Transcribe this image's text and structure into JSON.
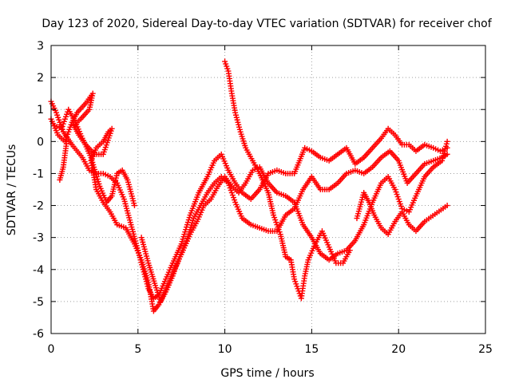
{
  "chart_data": {
    "type": "scatter",
    "title": "Day 123 of 2020, Sidereal Day-to-day VTEC variation (SDTVAR) for receiver chof",
    "xlabel": "GPS time / hours",
    "ylabel": "SDTVAR / TECUs",
    "xlim": [
      0,
      25
    ],
    "ylim": [
      -6,
      3
    ],
    "x_ticks": [
      0,
      5,
      10,
      15,
      20,
      25
    ],
    "y_ticks": [
      -6,
      -5,
      -4,
      -3,
      -2,
      -1,
      0,
      1,
      2,
      3
    ],
    "x_tick_labels": [
      "0",
      "5",
      "10",
      "15",
      "20",
      "25"
    ],
    "y_tick_labels": [
      "-6",
      "-5",
      "-4",
      "-3",
      "-2",
      "-1",
      "0",
      "1",
      "2",
      "3"
    ],
    "grid": true,
    "marker": "plus",
    "marker_color": "#ff0000",
    "series": [
      {
        "points": [
          [
            0.0,
            1.25
          ],
          [
            0.3,
            0.9
          ],
          [
            0.7,
            0.3
          ],
          [
            1.2,
            -0.1
          ],
          [
            1.8,
            -0.5
          ],
          [
            2.2,
            -0.9
          ],
          [
            2.6,
            -1.0
          ],
          [
            3.0,
            -1.0
          ],
          [
            3.4,
            -1.1
          ],
          [
            3.8,
            -1.3
          ],
          [
            4.2,
            -1.8
          ],
          [
            4.6,
            -2.6
          ],
          [
            5.0,
            -3.4
          ],
          [
            5.3,
            -4.0
          ],
          [
            5.6,
            -4.6
          ],
          [
            5.9,
            -4.9
          ],
          [
            6.2,
            -4.8
          ],
          [
            6.6,
            -4.3
          ],
          [
            7.0,
            -3.8
          ],
          [
            7.5,
            -3.2
          ],
          [
            8.0,
            -2.3
          ],
          [
            8.5,
            -1.6
          ],
          [
            9.0,
            -1.1
          ],
          [
            9.4,
            -0.6
          ],
          [
            9.8,
            -0.4
          ],
          [
            10.2,
            -0.9
          ],
          [
            10.6,
            -1.3
          ],
          [
            11.0,
            -1.6
          ],
          [
            11.5,
            -1.8
          ],
          [
            12.0,
            -1.5
          ],
          [
            12.5,
            -1.0
          ],
          [
            13.0,
            -0.9
          ],
          [
            13.5,
            -1.0
          ],
          [
            14.0,
            -1.0
          ],
          [
            14.3,
            -0.6
          ],
          [
            14.6,
            -0.2
          ],
          [
            15.0,
            -0.3
          ],
          [
            15.5,
            -0.5
          ],
          [
            16.0,
            -0.6
          ],
          [
            16.5,
            -0.4
          ],
          [
            17.0,
            -0.2
          ],
          [
            17.5,
            -0.7
          ],
          [
            18.0,
            -0.5
          ],
          [
            18.5,
            -0.2
          ],
          [
            19.0,
            0.1
          ],
          [
            19.4,
            0.4
          ],
          [
            19.8,
            0.2
          ],
          [
            20.2,
            -0.1
          ],
          [
            20.6,
            -0.1
          ],
          [
            21.0,
            -0.3
          ],
          [
            21.5,
            -0.1
          ],
          [
            22.0,
            -0.2
          ],
          [
            22.4,
            -0.3
          ],
          [
            22.8,
            -0.2
          ]
        ]
      },
      {
        "points": [
          [
            0.0,
            0.7
          ],
          [
            0.4,
            0.2
          ],
          [
            0.8,
            0.0
          ],
          [
            1.2,
            0.6
          ],
          [
            1.5,
            0.9
          ],
          [
            2.0,
            1.2
          ],
          [
            2.4,
            1.5
          ],
          [
            2.2,
            1.0
          ],
          [
            1.7,
            0.7
          ],
          [
            1.3,
            0.5
          ],
          [
            1.6,
            0.2
          ],
          [
            2.0,
            -0.1
          ],
          [
            2.5,
            -0.4
          ],
          [
            3.0,
            -0.4
          ],
          [
            3.5,
            0.4
          ],
          [
            3.3,
            0.3
          ],
          [
            3.0,
            0.0
          ],
          [
            2.6,
            -0.2
          ],
          [
            2.3,
            -0.6
          ],
          [
            2.6,
            -1.5
          ],
          [
            3.0,
            -1.9
          ],
          [
            3.4,
            -2.2
          ],
          [
            3.8,
            -2.6
          ],
          [
            4.3,
            -2.7
          ],
          [
            4.8,
            -3.2
          ],
          [
            5.2,
            -3.7
          ],
          [
            5.6,
            -4.4
          ],
          [
            5.9,
            -5.3
          ],
          [
            6.2,
            -5.1
          ],
          [
            6.6,
            -4.7
          ],
          [
            7.0,
            -4.2
          ],
          [
            7.4,
            -3.6
          ],
          [
            7.8,
            -3.1
          ],
          [
            8.2,
            -2.4
          ],
          [
            8.6,
            -2.0
          ],
          [
            9.0,
            -1.6
          ],
          [
            9.4,
            -1.3
          ],
          [
            9.8,
            -1.1
          ],
          [
            10.2,
            -1.3
          ],
          [
            10.6,
            -1.9
          ],
          [
            11.0,
            -2.4
          ],
          [
            11.5,
            -2.6
          ],
          [
            12.0,
            -2.7
          ],
          [
            12.5,
            -2.8
          ],
          [
            13.0,
            -2.8
          ],
          [
            13.5,
            -2.3
          ],
          [
            14.0,
            -2.1
          ],
          [
            14.5,
            -1.5
          ],
          [
            15.0,
            -1.1
          ],
          [
            15.5,
            -1.5
          ],
          [
            16.0,
            -1.5
          ],
          [
            16.5,
            -1.3
          ],
          [
            17.0,
            -1.0
          ],
          [
            17.5,
            -0.9
          ],
          [
            18.0,
            -1.0
          ],
          [
            18.5,
            -0.8
          ],
          [
            19.0,
            -0.5
          ],
          [
            19.5,
            -0.3
          ],
          [
            20.0,
            -0.6
          ],
          [
            20.5,
            -1.3
          ],
          [
            21.0,
            -1.0
          ],
          [
            21.5,
            -0.7
          ],
          [
            22.0,
            -0.6
          ],
          [
            22.5,
            -0.5
          ],
          [
            22.8,
            -0.4
          ]
        ]
      },
      {
        "points": [
          [
            0.2,
            0.5
          ],
          [
            0.6,
            0.4
          ],
          [
            1.0,
            1.0
          ],
          [
            1.4,
            0.6
          ],
          [
            1.8,
            0.1
          ],
          [
            2.3,
            -0.5
          ],
          [
            2.8,
            -1.4
          ],
          [
            3.2,
            -1.9
          ],
          [
            3.5,
            -1.7
          ],
          [
            3.8,
            -1.0
          ],
          [
            4.1,
            -0.9
          ],
          [
            4.4,
            -1.2
          ],
          [
            4.8,
            -2.0
          ],
          [
            5.2,
            -3.0
          ],
          [
            5.6,
            -3.8
          ],
          [
            6.0,
            -4.5
          ],
          [
            6.3,
            -5.0
          ],
          [
            6.7,
            -4.5
          ],
          [
            7.1,
            -4.0
          ],
          [
            7.6,
            -3.4
          ],
          [
            8.0,
            -2.9
          ],
          [
            8.4,
            -2.5
          ],
          [
            8.8,
            -2.0
          ],
          [
            9.2,
            -1.8
          ],
          [
            9.6,
            -1.4
          ],
          [
            10.0,
            -1.1
          ],
          [
            10.4,
            -1.4
          ],
          [
            10.8,
            -1.6
          ],
          [
            11.2,
            -1.3
          ],
          [
            11.6,
            -0.9
          ],
          [
            12.0,
            -0.8
          ],
          [
            12.5,
            -1.3
          ],
          [
            13.0,
            -1.6
          ],
          [
            13.5,
            -1.7
          ],
          [
            14.0,
            -1.9
          ],
          [
            14.5,
            -2.6
          ],
          [
            15.0,
            -3.0
          ],
          [
            15.5,
            -3.5
          ],
          [
            16.0,
            -3.7
          ],
          [
            16.5,
            -3.5
          ],
          [
            17.0,
            -3.4
          ],
          [
            17.5,
            -3.1
          ],
          [
            18.0,
            -2.6
          ],
          [
            18.5,
            -1.9
          ],
          [
            19.0,
            -1.3
          ],
          [
            19.4,
            -1.1
          ],
          [
            19.8,
            -1.5
          ],
          [
            20.2,
            -2.1
          ],
          [
            20.6,
            -2.2
          ],
          [
            21.0,
            -1.7
          ],
          [
            21.5,
            -1.1
          ],
          [
            22.0,
            -0.8
          ],
          [
            22.5,
            -0.6
          ],
          [
            22.8,
            0.0
          ]
        ]
      },
      {
        "points": [
          [
            0.5,
            -1.2
          ],
          [
            0.7,
            -0.8
          ],
          [
            0.9,
            0.0
          ],
          [
            10.0,
            2.5
          ],
          [
            10.2,
            2.2
          ],
          [
            10.4,
            1.5
          ],
          [
            10.6,
            0.9
          ],
          [
            10.9,
            0.3
          ],
          [
            11.2,
            -0.2
          ],
          [
            11.6,
            -0.6
          ],
          [
            12.0,
            -1.0
          ],
          [
            12.5,
            -1.6
          ],
          [
            12.8,
            -2.3
          ],
          [
            13.2,
            -2.9
          ],
          [
            13.5,
            -3.6
          ],
          [
            13.8,
            -3.7
          ],
          [
            14.0,
            -4.3
          ],
          [
            14.2,
            -4.6
          ],
          [
            14.4,
            -4.9
          ],
          [
            14.6,
            -4.2
          ],
          [
            14.8,
            -3.7
          ],
          [
            15.2,
            -3.2
          ],
          [
            15.6,
            -2.8
          ],
          [
            16.0,
            -3.3
          ],
          [
            16.4,
            -3.8
          ],
          [
            16.8,
            -3.8
          ],
          [
            17.2,
            -3.4
          ],
          [
            17.6,
            -2.4
          ],
          [
            18.0,
            -1.6
          ],
          [
            18.3,
            -1.9
          ],
          [
            18.6,
            -2.3
          ],
          [
            19.0,
            -2.7
          ],
          [
            19.4,
            -2.9
          ],
          [
            19.8,
            -2.5
          ],
          [
            20.2,
            -2.2
          ],
          [
            20.6,
            -2.6
          ],
          [
            21.0,
            -2.8
          ],
          [
            21.5,
            -2.5
          ],
          [
            22.8,
            -2.0
          ]
        ]
      }
    ]
  }
}
